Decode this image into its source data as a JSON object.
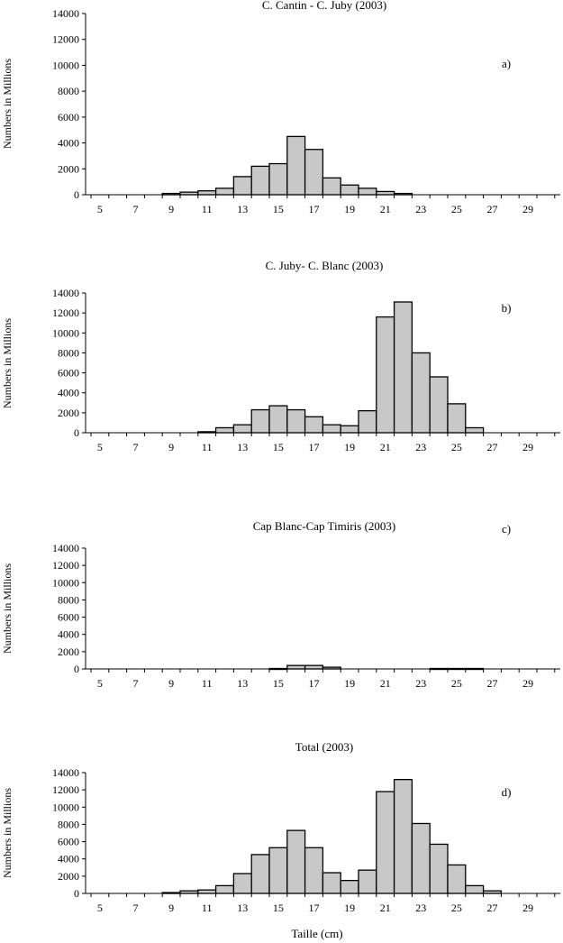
{
  "chart_data": [
    {
      "type": "bar",
      "title": "C. Cantin - C. Juby (2003)",
      "panel_label": "a)",
      "ylabel": "Numbers in Millions",
      "xlabel": "",
      "ylim": [
        0,
        14000
      ],
      "yticks": [
        0,
        2000,
        4000,
        6000,
        8000,
        10000,
        12000,
        14000
      ],
      "xticks": [
        5,
        7,
        9,
        11,
        13,
        15,
        17,
        19,
        21,
        23,
        25,
        27,
        29
      ],
      "categories": [
        5,
        6,
        7,
        8,
        9,
        10,
        11,
        12,
        13,
        14,
        15,
        16,
        17,
        18,
        19,
        20,
        21,
        22,
        23,
        24,
        25,
        26,
        27,
        28,
        29,
        30
      ],
      "values": [
        0,
        0,
        0,
        0,
        100,
        200,
        300,
        500,
        1400,
        2200,
        2400,
        4500,
        3500,
        1300,
        750,
        500,
        250,
        100,
        0,
        0,
        0,
        0,
        0,
        0,
        0,
        0
      ]
    },
    {
      "type": "bar",
      "title": "C. Juby- C. Blanc (2003)",
      "panel_label": "b)",
      "ylabel": "Numbers in Millions",
      "xlabel": "",
      "ylim": [
        0,
        14000
      ],
      "yticks": [
        0,
        2000,
        4000,
        6000,
        8000,
        10000,
        12000,
        14000
      ],
      "xticks": [
        5,
        7,
        9,
        11,
        13,
        15,
        17,
        19,
        21,
        23,
        25,
        27,
        29
      ],
      "categories": [
        5,
        6,
        7,
        8,
        9,
        10,
        11,
        12,
        13,
        14,
        15,
        16,
        17,
        18,
        19,
        20,
        21,
        22,
        23,
        24,
        25,
        26,
        27,
        28,
        29,
        30
      ],
      "values": [
        0,
        0,
        0,
        0,
        0,
        0,
        100,
        500,
        800,
        2300,
        2700,
        2300,
        1600,
        800,
        700,
        2200,
        11600,
        13100,
        8000,
        5600,
        2900,
        500,
        0,
        0,
        0,
        0
      ]
    },
    {
      "type": "bar",
      "title": "Cap Blanc-Cap Timiris (2003)",
      "panel_label": "c)",
      "ylabel": "Numbers in Millions",
      "xlabel": "",
      "ylim": [
        0,
        14000
      ],
      "yticks": [
        0,
        2000,
        4000,
        6000,
        8000,
        10000,
        12000,
        14000
      ],
      "xticks": [
        5,
        7,
        9,
        11,
        13,
        15,
        17,
        19,
        21,
        23,
        25,
        27,
        29
      ],
      "categories": [
        5,
        6,
        7,
        8,
        9,
        10,
        11,
        12,
        13,
        14,
        15,
        16,
        17,
        18,
        19,
        20,
        21,
        22,
        23,
        24,
        25,
        26,
        27,
        28,
        29,
        30
      ],
      "values": [
        0,
        0,
        0,
        0,
        0,
        0,
        0,
        0,
        0,
        0,
        50,
        400,
        400,
        200,
        0,
        0,
        0,
        0,
        0,
        50,
        50,
        50,
        0,
        0,
        0,
        0
      ]
    },
    {
      "type": "bar",
      "title": "Total (2003)",
      "panel_label": "d)",
      "ylabel": "Numbers in Millions",
      "xlabel": "Taille (cm)",
      "ylim": [
        0,
        14000
      ],
      "yticks": [
        0,
        2000,
        4000,
        6000,
        8000,
        10000,
        12000,
        14000
      ],
      "xticks": [
        5,
        7,
        9,
        11,
        13,
        15,
        17,
        19,
        21,
        23,
        25,
        27,
        29
      ],
      "categories": [
        5,
        6,
        7,
        8,
        9,
        10,
        11,
        12,
        13,
        14,
        15,
        16,
        17,
        18,
        19,
        20,
        21,
        22,
        23,
        24,
        25,
        26,
        27,
        28,
        29,
        30
      ],
      "values": [
        0,
        0,
        0,
        0,
        100,
        300,
        400,
        900,
        2300,
        4500,
        5300,
        7300,
        5300,
        2400,
        1500,
        2700,
        11800,
        13200,
        8100,
        5700,
        3300,
        900,
        300,
        0,
        0,
        0
      ]
    }
  ],
  "colors": {
    "bar_fill": "#c8c8c8",
    "bar_stroke": "#000000"
  }
}
